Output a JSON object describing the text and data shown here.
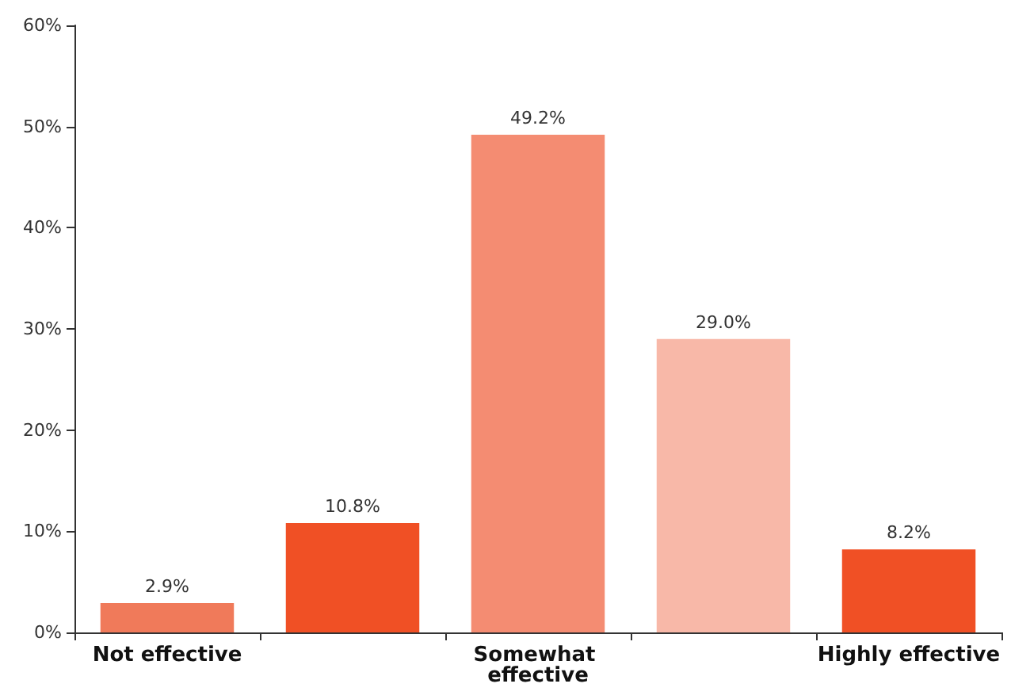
{
  "chart_data": {
    "type": "bar",
    "categories": [
      "Not effective",
      null,
      "Somewhat effective",
      null,
      "Highly effective"
    ],
    "values": [
      2.9,
      10.8,
      49.2,
      29.0,
      8.2
    ],
    "colors": [
      "#f07a5a",
      "#f05025",
      "#f48c72",
      "#f8b8a8",
      "#f05025"
    ],
    "value_labels": [
      "2.9%",
      "10.8%",
      "49.2%",
      "29.0%",
      "8.2%"
    ],
    "ylim": [
      0,
      60
    ],
    "yticks": [
      {
        "value": 0,
        "label": "0%"
      },
      {
        "value": 10,
        "label": "10%"
      },
      {
        "value": 20,
        "label": "20%"
      },
      {
        "value": 30,
        "label": "30%"
      },
      {
        "value": 40,
        "label": "40%"
      },
      {
        "value": 50,
        "label": "50%"
      },
      {
        "value": 60,
        "label": "60%"
      }
    ],
    "grid": false
  }
}
